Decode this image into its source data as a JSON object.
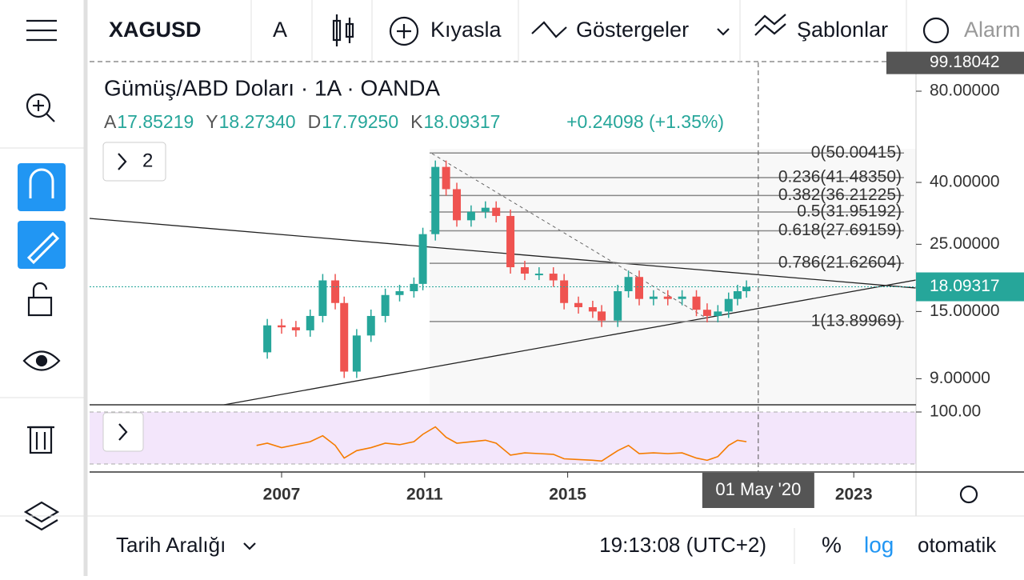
{
  "toolbar": {
    "symbol": "XAGUSD",
    "interval": "A",
    "compare": "Kıyasla",
    "indicators": "Göstergeler",
    "templates": "Şablonlar",
    "alerts": "Alarm"
  },
  "chart": {
    "title": "Gümüş/ABD Doları · 1A · OANDA",
    "ohlc": [
      {
        "key": "A",
        "value": "17.85219"
      },
      {
        "key": "Y",
        "value": "18.27340"
      },
      {
        "key": "D",
        "value": "17.79250"
      },
      {
        "key": "K",
        "value": "18.09317"
      }
    ],
    "change": "+0.24098 (+1.35%)",
    "panes_button": "2",
    "log": true,
    "times": [
      2006.3,
      2006.6,
      2007.0,
      2007.4,
      2007.8,
      2008.15,
      2008.5,
      2008.75,
      2009.1,
      2009.5,
      2009.9,
      2010.3,
      2010.7,
      2010.95,
      2011.3,
      2011.6,
      2011.9,
      2012.3,
      2012.7,
      2013.0,
      2013.4,
      2013.8,
      2014.2,
      2014.6,
      2014.9,
      2015.3,
      2015.7,
      2015.95,
      2016.4,
      2016.7,
      2017.0,
      2017.4,
      2017.8,
      2018.2,
      2018.6,
      2018.9,
      2019.2,
      2019.5,
      2019.75,
      2020.0
    ],
    "prices": [
      11,
      13.5,
      13.3,
      13,
      14.5,
      19,
      16,
      9.5,
      12.5,
      14.5,
      17,
      17.5,
      18.5,
      27,
      45,
      38,
      30,
      32,
      33,
      31,
      21,
      20,
      20,
      19,
      16,
      15.5,
      15,
      14,
      17.5,
      19.5,
      16.5,
      16.8,
      16.5,
      16.8,
      15.2,
      14.5,
      15,
      16.5,
      17.5,
      18.09317
    ],
    "rsi": [
      55,
      58,
      52,
      56,
      60,
      68,
      55,
      38,
      48,
      52,
      58,
      56,
      60,
      70,
      80,
      66,
      58,
      60,
      62,
      58,
      42,
      45,
      44,
      43,
      37,
      36,
      35,
      34,
      48,
      55,
      44,
      45,
      44,
      45,
      38,
      35,
      40,
      55,
      62,
      60
    ],
    "rsi_label": {
      "value": 100,
      "label": "100.00"
    },
    "ylim": [
      7.2,
      99.18042
    ],
    "yticks": [
      {
        "value": 80,
        "label": "80.00000"
      },
      {
        "value": 40,
        "label": "40.00000"
      },
      {
        "value": 25,
        "label": "25.00000"
      },
      {
        "value": 15,
        "label": "15.00000"
      },
      {
        "value": 9,
        "label": "9.00000"
      }
    ],
    "top_price": {
      "value": 99.18042,
      "label": "99.18042"
    },
    "last_price": {
      "value": 18.09317,
      "label": "18.09317"
    },
    "xticks": [
      2007,
      2011,
      2015,
      2023
    ],
    "crosshair": {
      "value": 2020.33,
      "label": "01 May '20"
    },
    "fib": [
      {
        "value": 50.00415,
        "label": "0(50.00415)"
      },
      {
        "value": 41.4835,
        "label": "0.236(41.48350)"
      },
      {
        "value": 36.21225,
        "label": "0.382(36.21225)"
      },
      {
        "value": 31.95192,
        "label": "0.5(31.95192)"
      },
      {
        "value": 27.69159,
        "label": "0.618(27.69159)"
      },
      {
        "value": 21.62604,
        "label": "0.786(21.62604)"
      },
      {
        "value": 13.89969,
        "label": "1(13.89969)"
      }
    ]
  },
  "bottom": {
    "range": "Tarih Aralığı",
    "clock": "19:13:08 (UTC+2)",
    "percent": "%",
    "log": "log",
    "auto": "otomatik"
  }
}
